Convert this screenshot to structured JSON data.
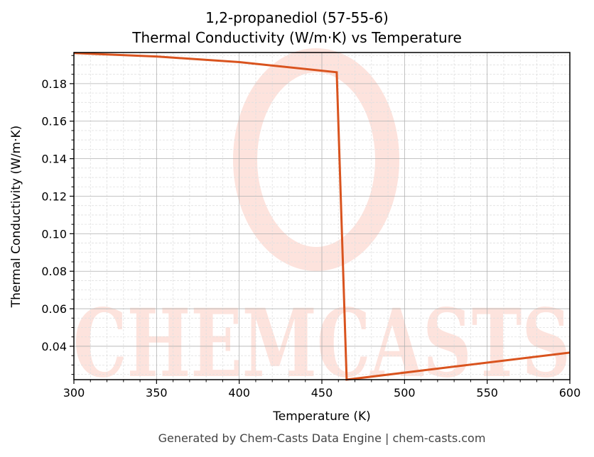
{
  "chart_data": {
    "type": "line",
    "title": "1,2-propanediol (57-55-6)",
    "subtitle": "Thermal Conductivity (W/m·K) vs Temperature",
    "xlabel": "Temperature (K)",
    "ylabel": "Thermal Conductivity (W/m·K)",
    "xlim": [
      300,
      600
    ],
    "ylim": [
      0.0222,
      0.1966
    ],
    "x_ticks": [
      300,
      350,
      400,
      450,
      500,
      550,
      600
    ],
    "y_ticks": [
      "0.04",
      "0.06",
      "0.08",
      "0.10",
      "0.12",
      "0.14",
      "0.16",
      "0.18"
    ],
    "grid": true,
    "legend": null,
    "series": [
      {
        "name": "Thermal Conductivity",
        "color": "#d9531e",
        "x": [
          300,
          350,
          400,
          459,
          465,
          600
        ],
        "y": [
          0.1963,
          0.1945,
          0.1915,
          0.1861,
          0.0222,
          0.0366
        ]
      }
    ],
    "watermark": "CHEMCASTS",
    "footer": "Generated by Chem-Casts Data Engine | chem-casts.com"
  },
  "header": {
    "title": "1,2-propanediol (57-55-6)",
    "subtitle": "Thermal Conductivity (W/m·K) vs Temperature"
  },
  "axes": {
    "xlabel": "Temperature (K)",
    "ylabel": "Thermal Conductivity (W/m·K)"
  },
  "footer": {
    "text": "Generated by Chem-Casts Data Engine | chem-casts.com"
  },
  "colors": {
    "line": "#d9531e",
    "watermark": "#fde3dd",
    "grid_major": "#b0b0b0",
    "grid_minor": "#e0e0e0"
  }
}
